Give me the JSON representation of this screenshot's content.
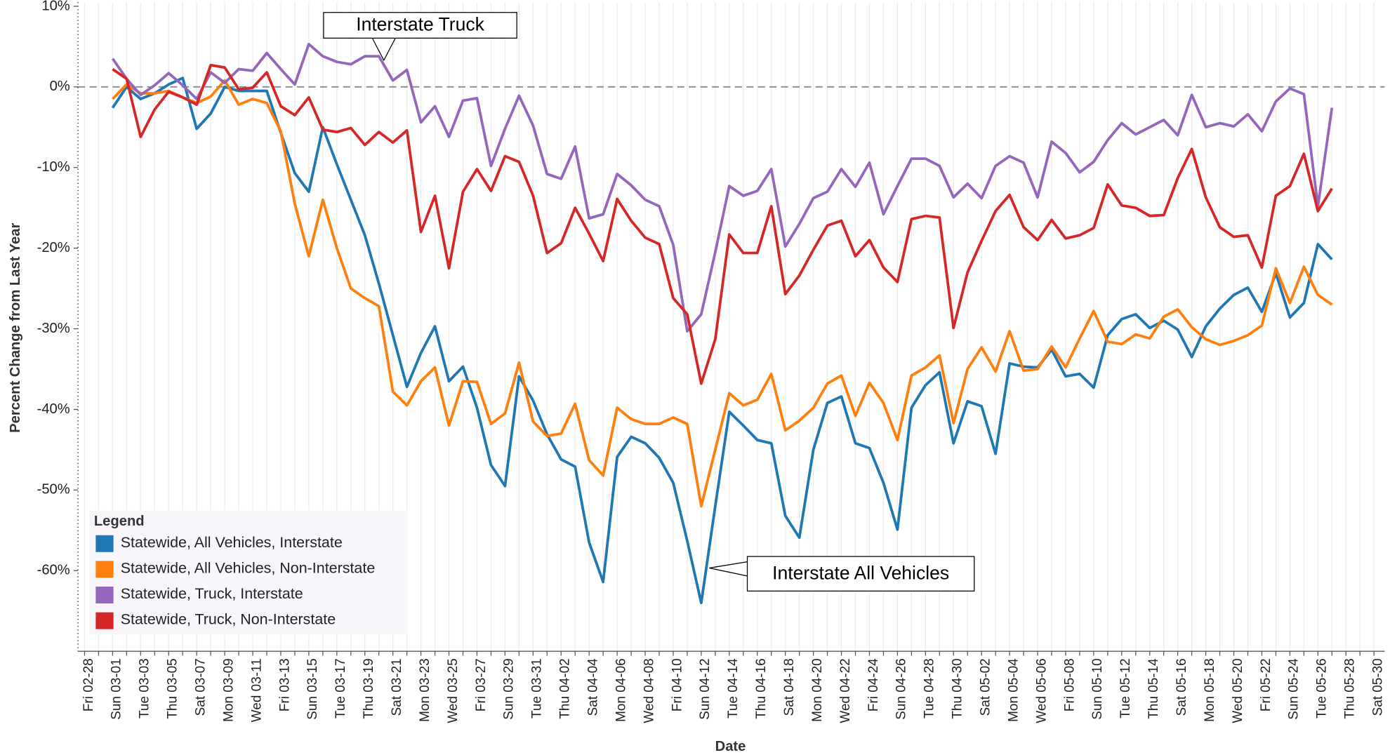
{
  "chart_data": {
    "type": "line",
    "y_label": "Percent Change from Last Year",
    "x_label": "Date",
    "legend_title": "Legend",
    "legend": "lower left",
    "reference_line": 0,
    "annotations": [
      {
        "text": "Interstate Truck"
      },
      {
        "text": "Interstate All Vehicles"
      }
    ],
    "ylim": [
      -70,
      10.5
    ],
    "yticks": [
      {
        "value": 10,
        "label": "10%"
      },
      {
        "value": 0,
        "label": "0%"
      },
      {
        "value": -10,
        "label": "-10%"
      },
      {
        "value": -20,
        "label": "-20%"
      },
      {
        "value": -30,
        "label": "-30%"
      },
      {
        "value": -40,
        "label": "-40%"
      },
      {
        "value": -50,
        "label": "-50%"
      },
      {
        "value": -60,
        "label": "-60%"
      }
    ],
    "categories": [
      "Fri 02-28",
      null,
      "Sun 03-01",
      null,
      "Tue 03-03",
      null,
      "Thu 03-05",
      null,
      "Sat 03-07",
      null,
      "Mon 03-09",
      null,
      "Wed 03-11",
      null,
      "Fri 03-13",
      null,
      "Sun 03-15",
      null,
      "Tue 03-17",
      null,
      "Thu 03-19",
      null,
      "Sat 03-21",
      null,
      "Mon 03-23",
      null,
      "Wed 03-25",
      null,
      "Fri 03-27",
      null,
      "Sun 03-29",
      null,
      "Tue 03-31",
      null,
      "Thu 04-02",
      null,
      "Sat 04-04",
      null,
      "Mon 04-06",
      null,
      "Wed 04-08",
      null,
      "Fri 04-10",
      null,
      "Sun 04-12",
      null,
      "Tue 04-14",
      null,
      "Thu 04-16",
      null,
      "Sat 04-18",
      null,
      "Mon 04-20",
      null,
      "Wed 04-22",
      null,
      "Fri 04-24",
      null,
      "Sun 04-26",
      null,
      "Tue 04-28",
      null,
      "Thu 04-30",
      null,
      "Sat 05-02",
      null,
      "Mon 05-04",
      null,
      "Wed 05-06",
      null,
      "Fri 05-08",
      null,
      "Sun 05-10",
      null,
      "Tue 05-12",
      null,
      "Thu 05-14",
      null,
      "Sat 05-16",
      null,
      "Mon 05-18",
      null,
      "Wed 05-20",
      null,
      "Fri 05-22",
      null,
      "Sun 05-24",
      null,
      "Tue 05-26",
      null,
      "Thu 05-28",
      null,
      "Sat 05-30"
    ],
    "series": [
      {
        "name": "Statewide, All Vehicles, Interstate",
        "color": "#1f77b4",
        "values": [
          null,
          null,
          -2.6,
          0,
          -1.5,
          -0.8,
          0.3,
          1.1,
          -5.2,
          -3.3,
          0,
          -0.5,
          -0.5,
          -0.5,
          -5.7,
          -10.7,
          -13,
          -5,
          -9.6,
          -14,
          -18.4,
          -24.4,
          -30.8,
          -37.2,
          -33,
          -29.7,
          -36.5,
          -34.7,
          -39.8,
          -46.9,
          -49.5,
          -35.9,
          -38.9,
          -43.1,
          -46.2,
          -47.1,
          -56.5,
          -61.4,
          -45.9,
          -43.4,
          -44.2,
          -46,
          -49.1,
          -56.3,
          -64,
          -52,
          -40.3,
          -42,
          -43.8,
          -44.2,
          -53.2,
          -55.9,
          -45,
          -39.2,
          -38.4,
          -44.2,
          -44.8,
          -49.1,
          -54.9,
          -39.8,
          -37,
          -35.4,
          -44.2,
          -39,
          -39.6,
          -45.5,
          -34.3,
          -34.7,
          -34.8,
          -32.6,
          -35.9,
          -35.6,
          -37.3,
          -30.8,
          -28.8,
          -28.2,
          -29.9,
          -29,
          -30.1,
          -33.5,
          -29.7,
          -27.5,
          -25.8,
          -24.9,
          -27.9,
          -23.1,
          -28.6,
          -26.8,
          -19.5,
          -21.4,
          null,
          null,
          null
        ]
      },
      {
        "name": "Statewide, All Vehicles, Non-Interstate",
        "color": "#ff7f0e",
        "values": [
          null,
          null,
          -1.5,
          0.3,
          -0.8,
          -0.8,
          -0.5,
          -1.3,
          -2,
          -1.2,
          0.8,
          -2.2,
          -1.5,
          -2,
          -5.5,
          -14.5,
          -21,
          -14,
          -20,
          -25,
          -26.2,
          -27.2,
          -37.8,
          -39.5,
          -36.5,
          -34.8,
          -42,
          -36.5,
          -36.6,
          -41.8,
          -40.5,
          -34.2,
          -41.5,
          -43.3,
          -43,
          -39.3,
          -46.3,
          -48.2,
          -39.8,
          -41.2,
          -41.8,
          -41.8,
          -41,
          -41.8,
          -52,
          -45,
          -38,
          -39.5,
          -38.8,
          -35.6,
          -42.6,
          -41.4,
          -39.8,
          -36.8,
          -35.8,
          -40.8,
          -36.7,
          -39.2,
          -43.8,
          -35.8,
          -34.8,
          -33.3,
          -41.7,
          -35,
          -32.3,
          -35.3,
          -30.3,
          -35.2,
          -35,
          -32.2,
          -34.8,
          -31.2,
          -27.8,
          -31.6,
          -31.9,
          -30.7,
          -31.2,
          -28.5,
          -27.6,
          -29.8,
          -31.3,
          -32,
          -31.5,
          -30.8,
          -29.6,
          -22.5,
          -26.8,
          -22.3,
          -25.8,
          -27,
          null,
          null,
          null
        ]
      },
      {
        "name": "Statewide, Truck, Interstate",
        "color": "#9467bd",
        "values": [
          null,
          null,
          3.5,
          1,
          -1,
          0.2,
          1.7,
          0.2,
          -1.5,
          1.8,
          0.5,
          2.2,
          2,
          4.2,
          2.2,
          0.3,
          5.3,
          3.8,
          3.1,
          2.8,
          3.8,
          3.8,
          0.8,
          2.1,
          -4.4,
          -2.4,
          -6.2,
          -1.7,
          -1.4,
          -9.8,
          -5.2,
          -1.1,
          -4.8,
          -10.8,
          -11.4,
          -7.4,
          -16.3,
          -15.8,
          -10.8,
          -12.2,
          -14,
          -14.8,
          -19.6,
          -30.3,
          -28.2,
          -20.5,
          -12.3,
          -13.5,
          -12.9,
          -10.2,
          -19.8,
          -17,
          -13.8,
          -13,
          -10.2,
          -12.4,
          -9.4,
          -15.8,
          -12.3,
          -8.9,
          -8.9,
          -9.8,
          -13.7,
          -12,
          -13.8,
          -9.8,
          -8.6,
          -9.4,
          -13.7,
          -6.8,
          -8.2,
          -10.6,
          -9.3,
          -6.6,
          -4.5,
          -5.9,
          -5,
          -4.1,
          -6,
          -1,
          -5,
          -4.5,
          -4.9,
          -3.4,
          -5.5,
          -1.8,
          -0.2,
          -0.9,
          -14.8,
          -2.6,
          null,
          null,
          null
        ]
      },
      {
        "name": "Statewide, Truck, Non-Interstate",
        "color": "#d62728",
        "values": [
          null,
          null,
          2.2,
          1,
          -6.2,
          -2.8,
          -0.6,
          -1.3,
          -2.2,
          2.7,
          2.4,
          -0.3,
          -0.1,
          1.8,
          -2.4,
          -3.5,
          -1.3,
          -5.3,
          -5.6,
          -5.1,
          -7.2,
          -5.6,
          -6.9,
          -5.4,
          -18,
          -13.5,
          -22.5,
          -13,
          -10.2,
          -12.9,
          -8.6,
          -9.3,
          -13.5,
          -20.6,
          -19.4,
          -15,
          -18.2,
          -21.6,
          -13.9,
          -16.6,
          -18.7,
          -19.5,
          -26.2,
          -28.2,
          -36.8,
          -31.3,
          -18.3,
          -20.6,
          -20.6,
          -14.8,
          -25.7,
          -23.4,
          -20.2,
          -17.2,
          -16.6,
          -21,
          -19,
          -22.4,
          -24.2,
          -16.4,
          -16,
          -16.2,
          -29.9,
          -23,
          -19.1,
          -15.4,
          -13.4,
          -17.4,
          -19,
          -16.5,
          -18.8,
          -18.4,
          -17.5,
          -12.1,
          -14.7,
          -15,
          -16,
          -15.9,
          -11.3,
          -7.7,
          -13.7,
          -17.4,
          -18.6,
          -18.4,
          -22.4,
          -13.5,
          -12.3,
          -8.3,
          -15.4,
          -12.6,
          null,
          null,
          null
        ]
      }
    ]
  }
}
